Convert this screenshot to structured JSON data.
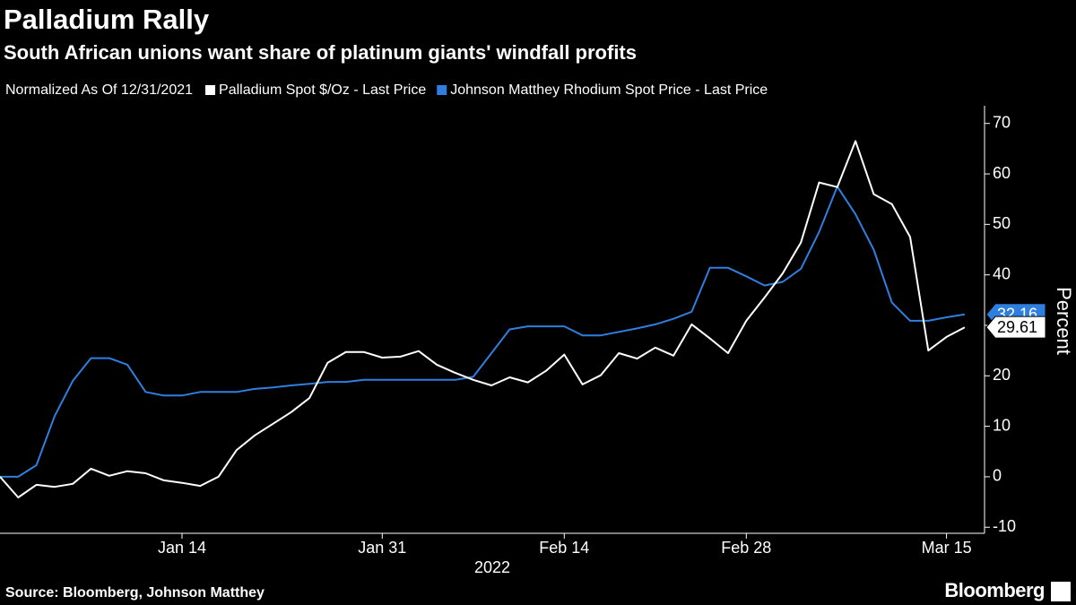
{
  "title": "Palladium Rally",
  "subtitle": "South African unions want share of platinum giants' windfall profits",
  "source": "Source: Bloomberg, Johnson Matthey",
  "brand": "Bloomberg",
  "chart_data": {
    "type": "line",
    "note": "Normalized As Of 12/31/2021",
    "xlabel": "2022",
    "ylabel": "Percent",
    "categories": [
      null,
      null,
      null,
      null,
      null,
      null,
      null,
      null,
      null,
      null,
      "Jan 14",
      null,
      null,
      null,
      null,
      null,
      null,
      null,
      null,
      null,
      null,
      "Jan 31",
      null,
      null,
      null,
      null,
      null,
      null,
      null,
      null,
      null,
      "Feb 14",
      null,
      null,
      null,
      null,
      null,
      null,
      null,
      null,
      null,
      "Feb 28",
      null,
      null,
      null,
      null,
      null,
      null,
      null,
      null,
      null,
      null,
      "Mar 15",
      null
    ],
    "series": [
      {
        "name": "Palladium Spot $/Oz - Last Price",
        "color": "#ffffff",
        "values": [
          0,
          -4.1,
          -1.6,
          -2.0,
          -1.4,
          1.6,
          0.2,
          1.1,
          0.7,
          -0.7,
          -1.2,
          -1.8,
          0.0,
          5.3,
          8.2,
          10.5,
          12.8,
          15.6,
          22.6,
          24.7,
          24.7,
          23.6,
          23.8,
          24.9,
          22.2,
          20.6,
          19.2,
          18.1,
          19.7,
          18.7,
          21.0,
          24.2,
          18.3,
          20.1,
          24.5,
          23.4,
          25.6,
          24.0,
          30.2,
          27.4,
          24.5,
          30.9,
          35.5,
          40.3,
          46.4,
          58.3,
          57.4,
          66.5,
          56.0,
          54.0,
          47.5,
          25.0,
          27.7,
          29.61
        ]
      },
      {
        "name": "Johnson Matthey Rhodium Spot Price - Last Price",
        "color": "#2f7fe0",
        "values": [
          0,
          0,
          2.3,
          12,
          19,
          23.5,
          23.5,
          22.2,
          16.8,
          16.1,
          16.1,
          16.8,
          16.8,
          16.8,
          17.4,
          17.7,
          18.1,
          18.4,
          18.8,
          18.8,
          19.2,
          19.2,
          19.2,
          19.2,
          19.2,
          19.2,
          19.8,
          24.5,
          29.2,
          29.8,
          29.8,
          29.8,
          28.0,
          28.0,
          28.7,
          29.4,
          30.2,
          31.3,
          32.7,
          41.4,
          41.4,
          39.7,
          37.9,
          38.6,
          41.2,
          48.5,
          57.5,
          52.0,
          45.0,
          34.5,
          30.9,
          30.9,
          31.6,
          32.16
        ]
      }
    ],
    "ylim": [
      -11.2,
      73.5
    ],
    "yticks": [
      -10,
      0,
      10,
      20,
      30,
      40,
      50,
      60,
      70
    ],
    "grid": false
  }
}
